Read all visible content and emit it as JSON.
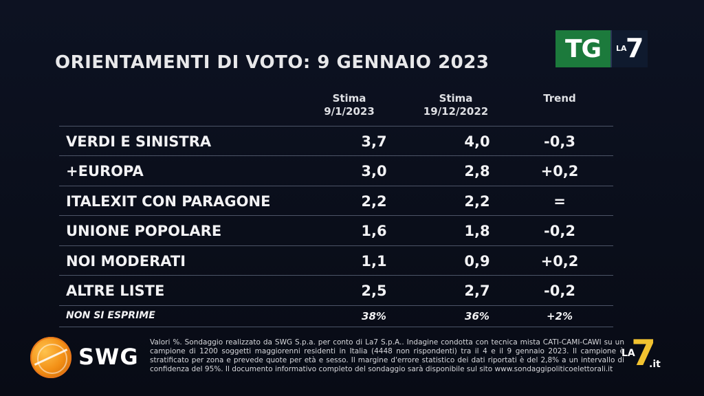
{
  "title": "ORIENTAMENTI DI VOTO: 9 GENNAIO 2023",
  "logo_tg": {
    "tg": "TG",
    "la": "LA",
    "seven": "7"
  },
  "columns": [
    {
      "line1": "Stima",
      "line2": "9/1/2023"
    },
    {
      "line1": "Stima",
      "line2": "19/12/2022"
    },
    {
      "line1": "Trend",
      "line2": ""
    }
  ],
  "rows": [
    {
      "label": "VERDI E SINISTRA",
      "stima_now": "3,7",
      "stima_prev": "4,0",
      "trend": "-0,3"
    },
    {
      "label": "+EUROPA",
      "stima_now": "3,0",
      "stima_prev": "2,8",
      "trend": "+0,2"
    },
    {
      "label": "ITALEXIT CON PARAGONE",
      "stima_now": "2,2",
      "stima_prev": "2,2",
      "trend": "="
    },
    {
      "label": "UNIONE POPOLARE",
      "stima_now": "1,6",
      "stima_prev": "1,8",
      "trend": "-0,2"
    },
    {
      "label": "NOI MODERATI",
      "stima_now": "1,1",
      "stima_prev": "0,9",
      "trend": "+0,2"
    },
    {
      "label": "ALTRE LISTE",
      "stima_now": "2,5",
      "stima_prev": "2,7",
      "trend": "-0,2"
    }
  ],
  "non_si_esprime": {
    "label": "NON SI ESPRIME",
    "stima_now": "38%",
    "stima_prev": "36%",
    "trend": "+2%"
  },
  "swg_logo": "SWG",
  "footnote": "Valori %. Sondaggio realizzato da SWG S.p.a. per conto di La7 S.p.A.. Indagine condotta con tecnica mista CATI-CAMI-CAWI su un campione di 1200 soggetti maggiorenni residenti in Italia (4448 non rispondenti) tra il 4 e il 9 gennaio 2023. Il campione è stratificato per zona e prevede quote per età e sesso. Il margine d'errore statistico dei dati riportati è del 2,8% a un intervallo di confidenza del 95%. Il documento informativo completo del sondaggio sarà disponibile sul sito www.sondaggipoliticoelettorali.it",
  "corner_logo": {
    "la": "LA",
    "seven": "7",
    "it": ".it"
  }
}
